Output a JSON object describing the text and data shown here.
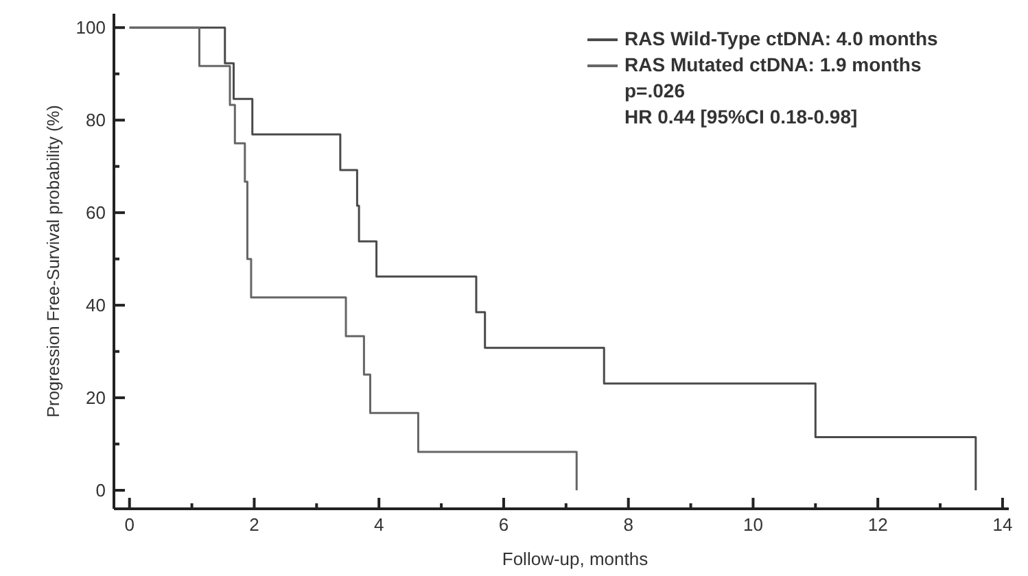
{
  "chart_data": {
    "type": "step",
    "xlabel": "Follow-up,  months",
    "ylabel": "Progression Free-Survival probability (%)",
    "xlim": [
      -0.25,
      14.1
    ],
    "ylim": [
      -4,
      103
    ],
    "xticks": [
      0,
      {
        "value": 1,
        "label": null
      },
      2,
      {
        "value": 3,
        "label": null
      },
      4,
      {
        "value": 5,
        "label": null
      },
      6,
      {
        "value": 7,
        "label": null
      },
      8,
      {
        "value": 9,
        "label": null
      },
      10,
      {
        "value": 11,
        "label": null
      },
      12,
      {
        "value": 13,
        "label": null
      },
      14
    ],
    "yticks": [
      0,
      {
        "value": 10,
        "label": null
      },
      20,
      {
        "value": 30,
        "label": null
      },
      40,
      {
        "value": 50,
        "label": null
      },
      60,
      {
        "value": 70,
        "label": null
      },
      80,
      {
        "value": 90,
        "label": null
      },
      100
    ],
    "grid": false,
    "legend": "top right",
    "marker": "none",
    "line_style": "solid",
    "series": [
      {
        "name": "RAS Wild-Type ctDNA:  4.0 months",
        "color": "#4a4a4a",
        "x": [
          0,
          1.53,
          1.67,
          1.97,
          3.38,
          3.65,
          3.68,
          3.96,
          5.56,
          5.7,
          7.61,
          11.0,
          13.57
        ],
        "values": [
          100,
          92.3,
          84.6,
          76.9,
          69.2,
          61.5,
          53.8,
          46.2,
          38.5,
          30.8,
          23.1,
          11.5,
          0
        ]
      },
      {
        "name": "RAS Mutated ctDNA:  1.9 months",
        "color": "#666666",
        "x": [
          0,
          1.12,
          1.61,
          1.69,
          1.85,
          1.89,
          1.95,
          3.47,
          3.76,
          3.86,
          4.63,
          7.17
        ],
        "values": [
          100,
          91.7,
          83.3,
          75,
          66.7,
          50,
          41.7,
          33.3,
          25,
          16.7,
          8.3,
          0
        ]
      }
    ],
    "annotations": [
      "p=.026",
      "HR 0.44 [95%CI  0.18-0.98]"
    ]
  }
}
